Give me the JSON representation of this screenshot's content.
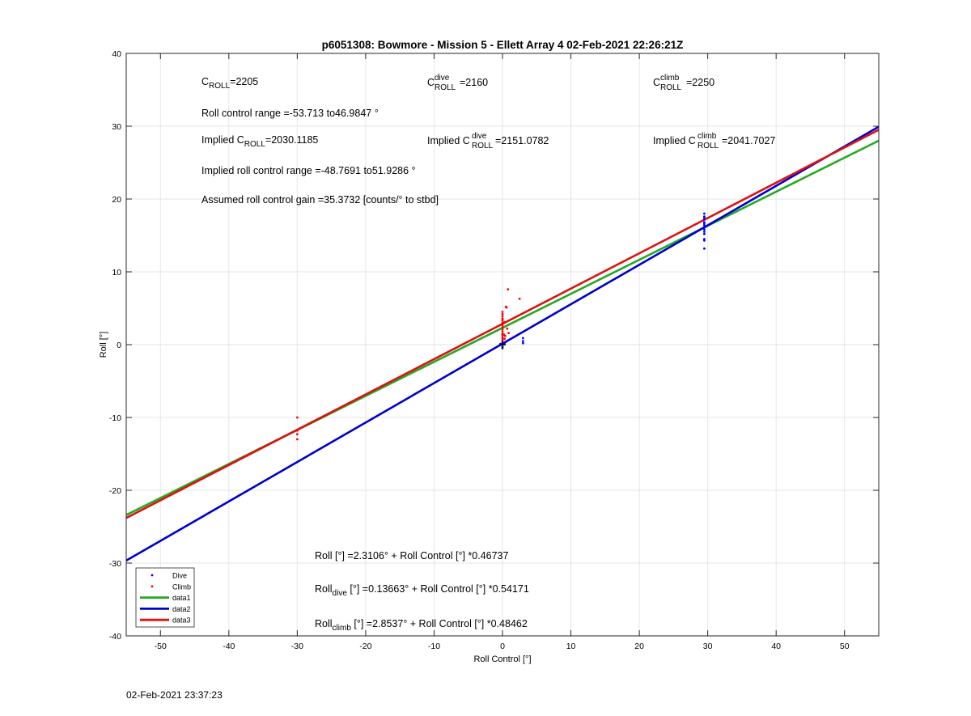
{
  "footer_timestamp": "02-Feb-2021 23:37:23",
  "chart_data": {
    "type": "scatter",
    "title": "p6051308: Bowmore - Mission 5 - Ellett Array 4 02-Feb-2021 22:26:21Z",
    "xlabel": "Roll Control [°]",
    "ylabel": "Roll [°]",
    "xlim": [
      -55,
      55
    ],
    "ylim": [
      -40,
      40
    ],
    "xticks": [
      -50,
      -40,
      -30,
      -20,
      -10,
      0,
      10,
      20,
      30,
      40,
      50
    ],
    "yticks": [
      -40,
      -30,
      -20,
      -10,
      0,
      10,
      20,
      30,
      40
    ],
    "grid": true,
    "legend_position": "bottom-left",
    "colors": {
      "dive": "#0000ff",
      "climb": "#ff0000",
      "data1": "#22aa22",
      "data2": "#0000cc",
      "data3": "#dd1111"
    },
    "series": [
      {
        "name": "Dive",
        "kind": "points",
        "color": "#0000ff",
        "x": [
          29.5,
          29.5,
          29.5,
          29.5,
          29.5,
          29.5,
          29.5,
          29.5,
          29.5,
          29.5,
          29.5,
          29.5,
          29.5,
          29.5,
          0,
          0,
          0,
          0,
          0,
          0,
          0,
          0,
          0.3,
          0.5,
          -0.3,
          3,
          3,
          3
        ],
        "y": [
          18,
          17.6,
          17.2,
          16.8,
          16.4,
          16.1,
          15.8,
          15.5,
          15.2,
          16.6,
          17.4,
          14.5,
          14.3,
          13.2,
          0.6,
          0.3,
          0,
          -0.3,
          0.9,
          1.4,
          0.1,
          -0.5,
          0.2,
          0.4,
          0.1,
          0.2,
          0.5,
          0.9
        ]
      },
      {
        "name": "Climb",
        "kind": "points",
        "color": "#ff0000",
        "x": [
          -30,
          -30,
          -30,
          -30,
          0,
          0,
          0,
          0,
          0,
          0,
          0,
          0,
          0,
          0,
          0,
          0,
          0,
          0,
          0,
          0,
          0.5,
          0.3,
          0.7,
          0.9,
          0.2,
          0.4,
          2.5,
          0.8,
          0.6,
          0.3
        ],
        "y": [
          -10,
          -11.8,
          -12.3,
          -13,
          4.5,
          4.2,
          3.9,
          3.6,
          3.3,
          3.0,
          2.7,
          2.4,
          2.1,
          1.8,
          1.5,
          1.2,
          0.9,
          0.6,
          2.9,
          3.5,
          5.2,
          3.1,
          2.2,
          1.6,
          1.4,
          1.2,
          6.3,
          7.6,
          5.1,
          0.8
        ]
      },
      {
        "name": "data1",
        "kind": "line",
        "color": "#22aa22",
        "x": [
          -55,
          55
        ],
        "y": [
          -23.395,
          28.016
        ]
      },
      {
        "name": "data2",
        "kind": "line",
        "color": "#0000cc",
        "x": [
          -55,
          55
        ],
        "y": [
          -29.658,
          29.931
        ]
      },
      {
        "name": "data3",
        "kind": "line",
        "color": "#dd1111",
        "x": [
          -55,
          55
        ],
        "y": [
          -23.8,
          29.508
        ]
      }
    ],
    "annotations": {
      "c_roll_main": "C",
      "c_roll_sub": "ROLL",
      "c_roll_value": "=2205",
      "c_dive_main": "C",
      "c_dive_sup": "dive",
      "c_dive_sub": "ROLL",
      "c_dive_value": "=2160",
      "c_climb_main": "C",
      "c_climb_sup": "climb",
      "c_climb_sub": "ROLL",
      "c_climb_value": "=2250",
      "roll_range": "Roll control range =-53.713 to46.9847 °",
      "implied_prefix": "Implied C",
      "implied_sub": "ROLL",
      "implied_value": "=2030.1185",
      "implied_dive_prefix": "Implied C",
      "implied_dive_sup": "dive",
      "implied_dive_sub": "ROLL",
      "implied_dive_value": "=2151.0782",
      "implied_climb_prefix": "Implied C",
      "implied_climb_sup": "climb",
      "implied_climb_sub": "ROLL",
      "implied_climb_value": "=2041.7027",
      "implied_range": "Implied roll control range =-48.7691 to51.9286 °",
      "gain": "Assumed roll control gain =35.3732 [counts/° to stbd]",
      "eq_all": "Roll [°] =2.3106° + Roll Control [°] *0.46737",
      "eq_dive_main": "Roll",
      "eq_dive_sub": "dive",
      "eq_dive_rest": " [°] =0.13663° + Roll Control [°] *0.54171",
      "eq_climb_main": "Roll",
      "eq_climb_sub": "climb",
      "eq_climb_rest": " [°] =2.8537° + Roll Control [°] *0.48462"
    }
  }
}
